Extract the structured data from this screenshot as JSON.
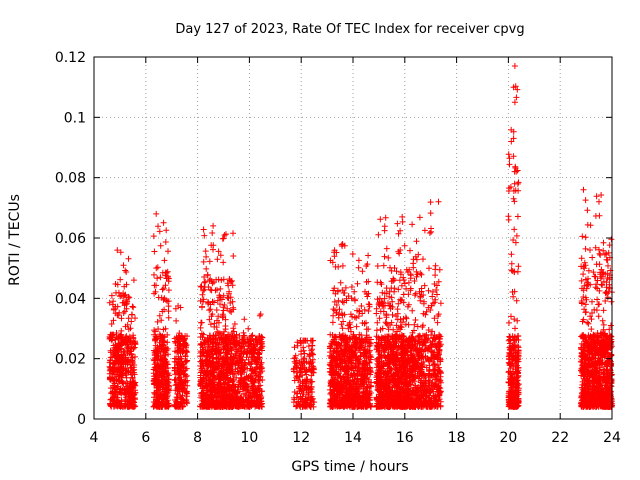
{
  "chart_data": {
    "type": "scatter",
    "title": "Day 127 of 2023, Rate Of TEC Index for receiver cpvg",
    "xlabel": "GPS time / hours",
    "ylabel": "ROTI / TECUs",
    "xlim": [
      4,
      24
    ],
    "ylim": [
      0,
      0.12
    ],
    "x_ticks": [
      "4",
      "6",
      "8",
      "10",
      "12",
      "14",
      "16",
      "18",
      "20",
      "22",
      "24"
    ],
    "y_ticks": [
      "0",
      "0.02",
      "0.04",
      "0.06",
      "0.08",
      "0.1",
      "0.12"
    ],
    "grid": true,
    "marker": "+",
    "colors": {
      "points": "#ff0000",
      "grid": "#a0a0a0",
      "axes": "#000000"
    },
    "series": [
      {
        "clusters": [
          {
            "x": [
              4.6,
              5.6
            ],
            "y_max": 0.056,
            "n": 520
          },
          {
            "x": [
              6.3,
              6.9
            ],
            "y_max": 0.068,
            "n": 380
          },
          {
            "x": [
              7.1,
              7.6
            ],
            "y_max": 0.038,
            "n": 230
          },
          {
            "x": [
              8.1,
              9.4
            ],
            "y_max": 0.064,
            "n": 900
          },
          {
            "x": [
              9.4,
              10.5
            ],
            "y_max": 0.035,
            "n": 460
          },
          {
            "x": [
              11.7,
              12.5
            ],
            "y_max": 0.026,
            "n": 200
          },
          {
            "x": [
              13.1,
              13.9
            ],
            "y_max": 0.058,
            "n": 500
          },
          {
            "x": [
              13.9,
              14.7
            ],
            "y_max": 0.056,
            "n": 460
          },
          {
            "x": [
              14.9,
              16.4
            ],
            "y_max": 0.067,
            "n": 1100
          },
          {
            "x": [
              16.4,
              17.4
            ],
            "y_max": 0.072,
            "n": 480
          },
          {
            "x": [
              20.0,
              20.4
            ],
            "y_max": 0.117,
            "n": 330
          },
          {
            "x": [
              22.8,
              24.0
            ],
            "y_max": 0.076,
            "n": 1000
          }
        ],
        "notable_points": [
          {
            "x": 20.25,
            "y": 0.117
          },
          {
            "x": 20.2,
            "y": 0.11
          },
          {
            "x": 20.25,
            "y": 0.105
          },
          {
            "x": 20.2,
            "y": 0.093
          },
          {
            "x": 20.3,
            "y": 0.082
          },
          {
            "x": 20.2,
            "y": 0.073
          },
          {
            "x": 17.3,
            "y": 0.072
          },
          {
            "x": 6.4,
            "y": 0.068
          },
          {
            "x": 15.9,
            "y": 0.067
          },
          {
            "x": 8.6,
            "y": 0.064
          },
          {
            "x": 22.9,
            "y": 0.076
          },
          {
            "x": 23.5,
            "y": 0.072
          },
          {
            "x": 4.9,
            "y": 0.056
          },
          {
            "x": 13.6,
            "y": 0.058
          }
        ]
      }
    ]
  }
}
